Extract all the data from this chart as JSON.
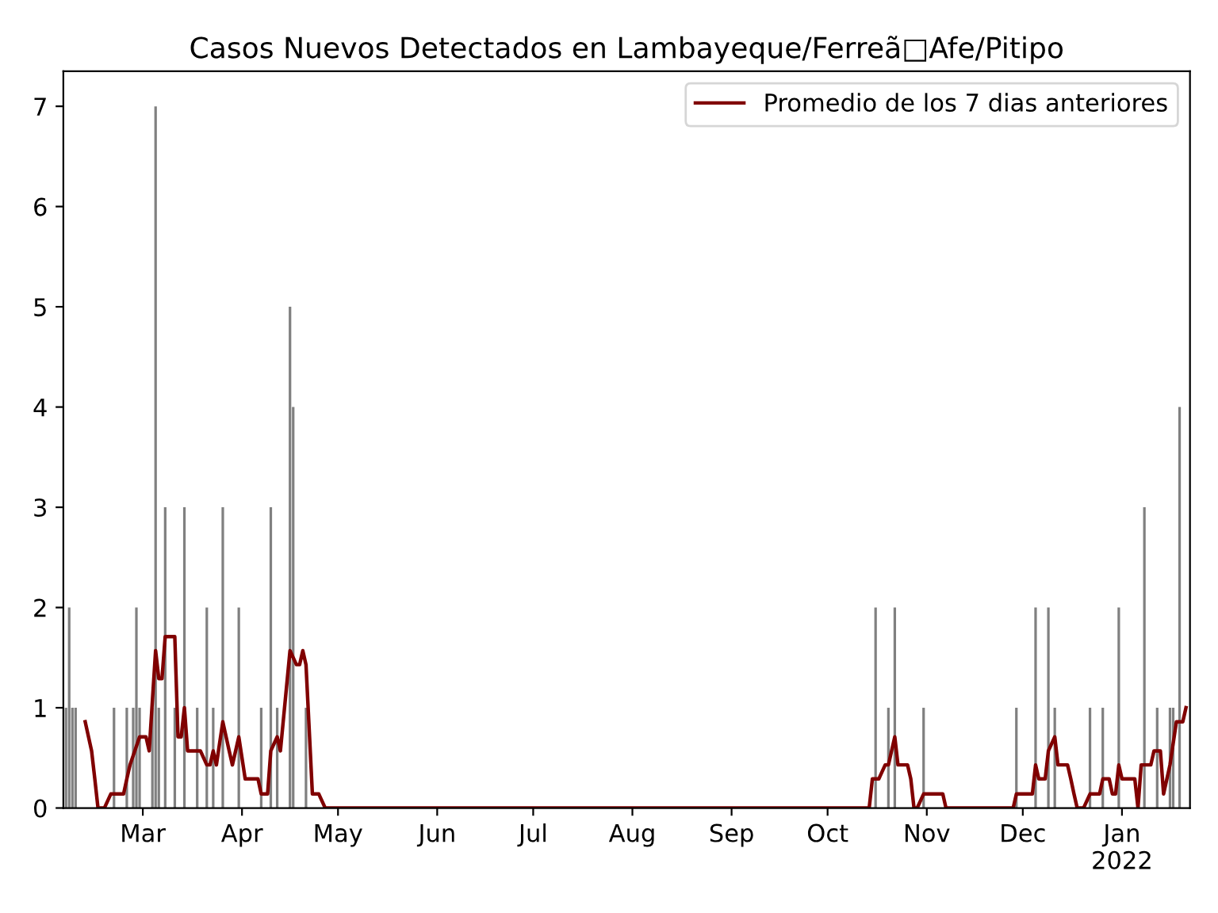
{
  "chart_data": {
    "type": "bar",
    "title": "Casos Nuevos Detectados en Lambayeque/Ferreã□Afe/Pitipo",
    "xlim": [
      "2021-02-04T04:00",
      "2022-01-22T06:00"
    ],
    "xticks": [
      {
        "value": "2021-03-01",
        "label": "Mar"
      },
      {
        "value": "2021-04-01",
        "label": "Apr"
      },
      {
        "value": "2021-05-01",
        "label": "May"
      },
      {
        "value": "2021-06-01",
        "label": "Jun"
      },
      {
        "value": "2021-07-01",
        "label": "Jul"
      },
      {
        "value": "2021-08-01",
        "label": "Aug"
      },
      {
        "value": "2021-09-01",
        "label": "Sep"
      },
      {
        "value": "2021-10-01",
        "label": "Oct"
      },
      {
        "value": "2021-11-01",
        "label": "Nov"
      },
      {
        "value": "2021-12-01",
        "label": "Dec"
      },
      {
        "value": "2022-01-01",
        "label": "Jan\n2022"
      }
    ],
    "ylim": [
      0,
      7.35
    ],
    "yticks": [
      0,
      1,
      2,
      3,
      4,
      5,
      6,
      7
    ],
    "grid": false,
    "legend": "top right",
    "series": [
      {
        "color": "#808080",
        "x": [
          "2021-02-05",
          "2021-02-06",
          "2021-02-07",
          "2021-02-08",
          "2021-02-20",
          "2021-02-24",
          "2021-02-26",
          "2021-02-27",
          "2021-02-28",
          "2021-03-04",
          "2021-03-05",
          "2021-03-06",
          "2021-03-08",
          "2021-03-11",
          "2021-03-14",
          "2021-03-18",
          "2021-03-21",
          "2021-03-23",
          "2021-03-26",
          "2021-03-31",
          "2021-04-07",
          "2021-04-10",
          "2021-04-12",
          "2021-04-16",
          "2021-04-17",
          "2021-04-21",
          "2021-10-16",
          "2021-10-20",
          "2021-10-22",
          "2021-10-31",
          "2021-11-29",
          "2021-12-05",
          "2021-12-09",
          "2021-12-11",
          "2021-12-22",
          "2021-12-26",
          "2021-12-31",
          "2022-01-08",
          "2022-01-12",
          "2022-01-16",
          "2022-01-17",
          "2022-01-19"
        ],
        "values": [
          1,
          2,
          1,
          1,
          1,
          1,
          1,
          2,
          1,
          1,
          7,
          1,
          3,
          1,
          3,
          1,
          2,
          1,
          3,
          2,
          1,
          3,
          1,
          5,
          4,
          1,
          2,
          1,
          2,
          1,
          1,
          2,
          2,
          1,
          1,
          1,
          2,
          3,
          1,
          1,
          1,
          4
        ]
      },
      {
        "type": "line",
        "name": "Promedio de los 7 dias anteriores",
        "color": "#800000",
        "marker": "none",
        "line_style": "solid",
        "x": [
          "2021-02-11",
          "2021-02-13",
          "2021-02-14",
          "2021-02-15",
          "2021-02-17",
          "2021-02-19",
          "2021-02-23",
          "2021-02-24",
          "2021-02-25",
          "2021-02-28",
          "2021-03-02",
          "2021-03-03",
          "2021-03-05",
          "2021-03-06",
          "2021-03-07",
          "2021-03-08",
          "2021-03-11",
          "2021-03-12",
          "2021-03-13",
          "2021-03-14",
          "2021-03-15",
          "2021-03-19",
          "2021-03-21",
          "2021-03-22",
          "2021-03-23",
          "2021-03-24",
          "2021-03-26",
          "2021-03-28",
          "2021-03-29",
          "2021-03-31",
          "2021-04-02",
          "2021-04-06",
          "2021-04-07",
          "2021-04-09",
          "2021-04-10",
          "2021-04-12",
          "2021-04-13",
          "2021-04-16",
          "2021-04-18",
          "2021-04-19",
          "2021-04-20",
          "2021-04-21",
          "2021-04-23",
          "2021-04-25",
          "2021-04-27",
          "2021-10-14",
          "2021-10-15",
          "2021-10-17",
          "2021-10-19",
          "2021-10-20",
          "2021-10-22",
          "2021-10-23",
          "2021-10-26",
          "2021-10-27",
          "2021-10-28",
          "2021-10-29",
          "2021-10-31",
          "2021-11-06",
          "2021-11-07",
          "2021-11-28",
          "2021-11-29",
          "2021-12-04",
          "2021-12-05",
          "2021-12-06",
          "2021-12-08",
          "2021-12-09",
          "2021-12-11",
          "2021-12-12",
          "2021-12-15",
          "2021-12-16",
          "2021-12-17",
          "2021-12-18",
          "2021-12-20",
          "2021-12-22",
          "2021-12-25",
          "2021-12-26",
          "2021-12-28",
          "2021-12-29",
          "2021-12-30",
          "2021-12-31",
          "2022-01-01",
          "2022-01-05",
          "2022-01-06",
          "2022-01-07",
          "2022-01-10",
          "2022-01-11",
          "2022-01-13",
          "2022-01-14",
          "2022-01-16",
          "2022-01-18",
          "2022-01-20",
          "2022-01-21"
        ],
        "values": [
          0.86,
          0.57,
          0.29,
          0,
          0,
          0.14,
          0.14,
          0.29,
          0.43,
          0.71,
          0.71,
          0.57,
          1.57,
          1.29,
          1.29,
          1.71,
          1.71,
          0.71,
          0.71,
          1.0,
          0.57,
          0.57,
          0.43,
          0.43,
          0.57,
          0.43,
          0.86,
          0.57,
          0.43,
          0.71,
          0.29,
          0.29,
          0.14,
          0.14,
          0.57,
          0.71,
          0.57,
          1.57,
          1.43,
          1.43,
          1.57,
          1.43,
          0.14,
          0.14,
          0,
          0,
          0.29,
          0.29,
          0.43,
          0.43,
          0.71,
          0.43,
          0.43,
          0.29,
          0,
          0,
          0.14,
          0.14,
          0,
          0,
          0.14,
          0.14,
          0.43,
          0.29,
          0.29,
          0.57,
          0.71,
          0.43,
          0.43,
          0.29,
          0.14,
          0,
          0,
          0.14,
          0.14,
          0.29,
          0.29,
          0.14,
          0.14,
          0.43,
          0.29,
          0.29,
          0,
          0.43,
          0.43,
          0.57,
          0.57,
          0.14,
          0.43,
          0.86,
          0.86,
          1.0
        ]
      }
    ]
  }
}
